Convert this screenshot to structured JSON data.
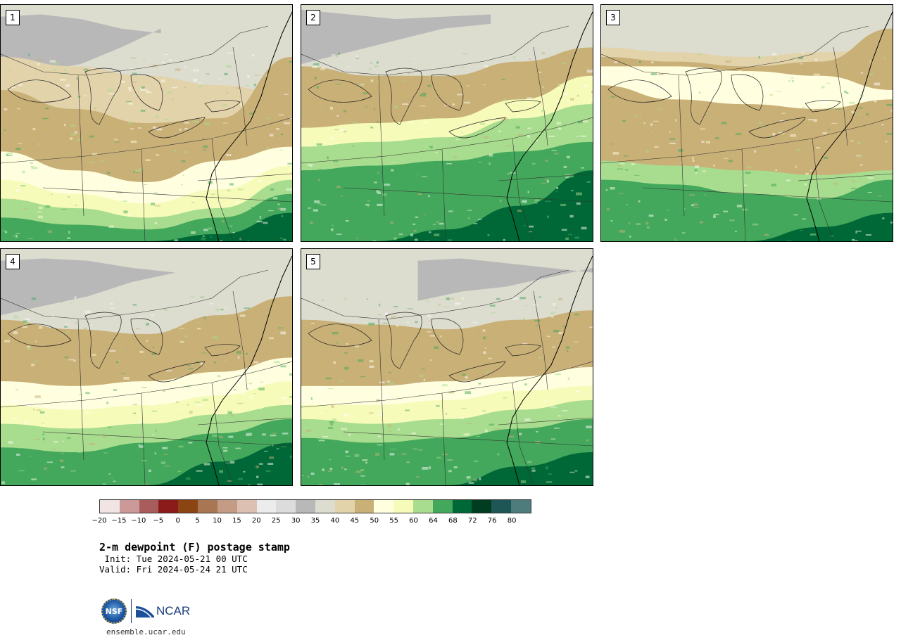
{
  "panels": [
    {
      "label": "1"
    },
    {
      "label": "2"
    },
    {
      "label": "3"
    },
    {
      "label": "4"
    },
    {
      "label": "5"
    }
  ],
  "colorbar": {
    "colors": [
      "#f1e4e4",
      "#cc9999",
      "#a85c5c",
      "#8b1a1a",
      "#8b4513",
      "#a97653",
      "#c49b84",
      "#dcc1b3",
      "#ececec",
      "#dcdcdc",
      "#b8b8b8",
      "#dcdccf",
      "#e2d3ab",
      "#c9b077",
      "#ffffe0",
      "#f6fbb9",
      "#a8dc8e",
      "#43a85c",
      "#006837",
      "#003d20",
      "#1e5656",
      "#4e7c7c"
    ],
    "ticks": [
      "−20",
      "−15",
      "−10",
      "−5",
      "0",
      "5",
      "10",
      "15",
      "20",
      "25",
      "30",
      "35",
      "40",
      "45",
      "50",
      "55",
      "60",
      "64",
      "68",
      "72",
      "76",
      "80"
    ]
  },
  "title": "2-m dewpoint (F) postage stamp",
  "init": " Init: Tue 2024-05-21 00 UTC",
  "valid": "Valid: Fri 2024-05-24 21 UTC",
  "logos": {
    "nsf_text": "NSF",
    "ncar_text": "NCAR",
    "url": "ensemble.ucar.edu"
  }
}
